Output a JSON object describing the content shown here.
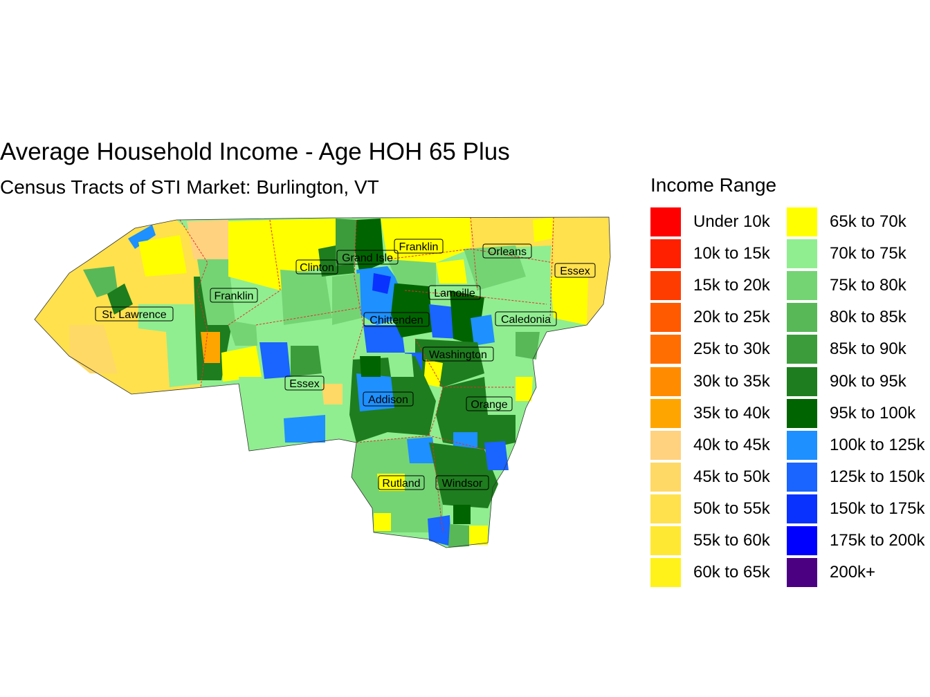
{
  "title": "Average Household Income - Age HOH 65 Plus",
  "subtitle": "Census Tracts of STI Market: Burlington, VT",
  "legend": {
    "title": "Income Range",
    "items": [
      {
        "label": "Under 10k",
        "color": "#ff0000"
      },
      {
        "label": "10k to 15k",
        "color": "#ff2000"
      },
      {
        "label": "15k to 20k",
        "color": "#ff3c00"
      },
      {
        "label": "20k to 25k",
        "color": "#ff5a00"
      },
      {
        "label": "25k to 30k",
        "color": "#ff6e00"
      },
      {
        "label": "30k to 35k",
        "color": "#ff8c00"
      },
      {
        "label": "35k to 40k",
        "color": "#ffa500"
      },
      {
        "label": "40k to 45k",
        "color": "#ffd280"
      },
      {
        "label": "45k to 50k",
        "color": "#ffd966"
      },
      {
        "label": "50k to 55k",
        "color": "#ffe14d"
      },
      {
        "label": "55k to 60k",
        "color": "#ffe833"
      },
      {
        "label": "60k to 65k",
        "color": "#fff21a"
      },
      {
        "label": "65k to 70k",
        "color": "#ffff00"
      },
      {
        "label": "70k to 75k",
        "color": "#90ee90"
      },
      {
        "label": "75k to 80k",
        "color": "#74d474"
      },
      {
        "label": "80k to 85k",
        "color": "#58b858"
      },
      {
        "label": "85k to 90k",
        "color": "#3c9c3c"
      },
      {
        "label": "90k to 95k",
        "color": "#1e7d1e"
      },
      {
        "label": "95k to 100k",
        "color": "#006400"
      },
      {
        "label": "100k to 125k",
        "color": "#1e90ff"
      },
      {
        "label": "125k to 150k",
        "color": "#1a64ff"
      },
      {
        "label": "150k to 175k",
        "color": "#0a32ff"
      },
      {
        "label": "175k to 200k",
        "color": "#0000ff"
      },
      {
        "label": "200k+",
        "color": "#4b0082"
      }
    ]
  },
  "county_labels": [
    "Franklin",
    "Orleans",
    "Essex",
    "Grand Isle",
    "Clinton",
    "Franklin",
    "Lamoille",
    "St. Lawrence",
    "Chittenden",
    "Caledonia",
    "Washington",
    "Essex",
    "Addison",
    "Orange",
    "Rutland",
    "Windsor"
  ]
}
